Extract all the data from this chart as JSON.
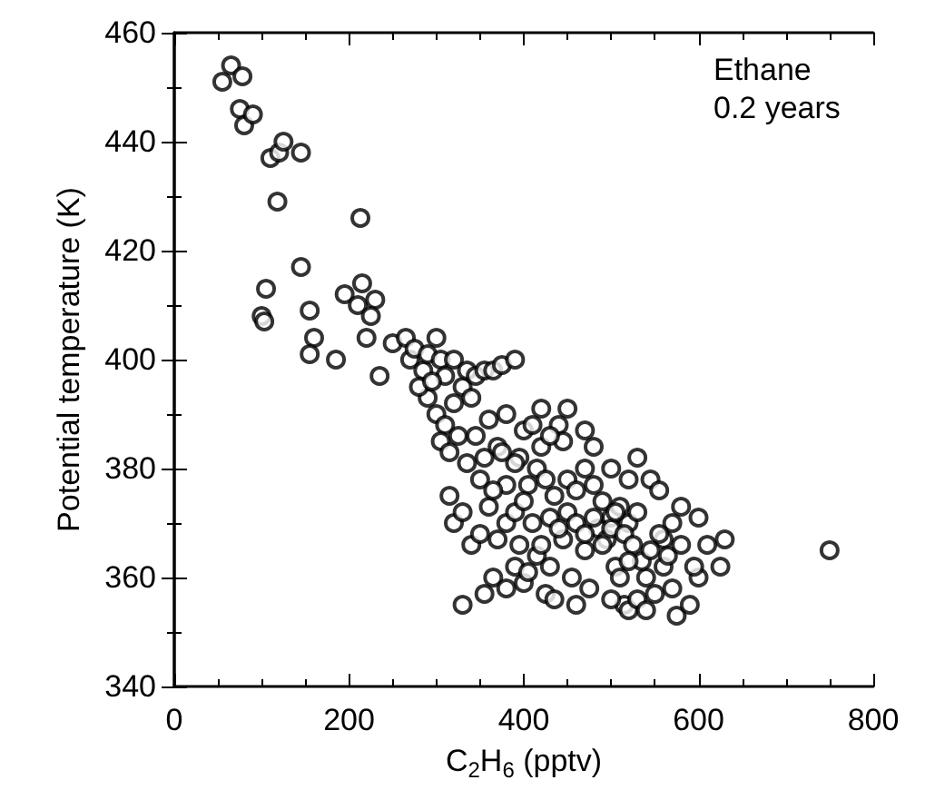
{
  "chart_data": {
    "type": "scatter",
    "xlabel": "C$_{2}$H$_{6}$ (pptv)",
    "ylabel": "Potential temperature (K)",
    "annotations": [
      "Ethane\n0.2 years"
    ],
    "xlim": [
      0,
      800
    ],
    "xticks": [
      0,
      200,
      400,
      600,
      800
    ],
    "ylim": [
      340,
      460
    ],
    "yticks": [
      340,
      360,
      380,
      400,
      420,
      440,
      460
    ],
    "marker": "circle",
    "series": [
      {
        "color": "#000000",
        "x": [
          55,
          65,
          78,
          75,
          80,
          90,
          110,
          120,
          118,
          145,
          125,
          213,
          105,
          100,
          103,
          145,
          155,
          160,
          155,
          185,
          195,
          210,
          215,
          220,
          230,
          225,
          235,
          250,
          265,
          270,
          275,
          285,
          290,
          300,
          305,
          310,
          320,
          290,
          300,
          310,
          320,
          330,
          335,
          340,
          345,
          355,
          365,
          375,
          390,
          305,
          315,
          325,
          335,
          345,
          355,
          360,
          370,
          380,
          400,
          420,
          440,
          445,
          410,
          395,
          405,
          415,
          425,
          435,
          450,
          460,
          470,
          480,
          490,
          500,
          510,
          520,
          530,
          545,
          555,
          560,
          570,
          580,
          600,
          610,
          630,
          625,
          750,
          330,
          355,
          365,
          380,
          390,
          400,
          415,
          425,
          430,
          445,
          455,
          470,
          485,
          495,
          505,
          515,
          520,
          530,
          540,
          550,
          560,
          570,
          575,
          590,
          600,
          315,
          320,
          330,
          340,
          350,
          360,
          370,
          380,
          390,
          400,
          410,
          420,
          430,
          440,
          450,
          460,
          470,
          480,
          490,
          500,
          505,
          515,
          525,
          535,
          545,
          555,
          565,
          580,
          595,
          380,
          390,
          395,
          405,
          435,
          460,
          475,
          500,
          510,
          520,
          540,
          350,
          365,
          375,
          420,
          430,
          450,
          470,
          480,
          500,
          520,
          530,
          280,
          295
        ],
        "values": [
          451,
          454,
          452,
          446,
          443,
          445,
          437,
          438,
          429,
          438,
          440,
          426,
          413,
          408,
          407,
          417,
          409,
          404,
          401,
          400,
          412,
          410,
          414,
          404,
          411,
          408,
          397,
          403,
          404,
          400,
          402,
          398,
          401,
          404,
          400,
          397,
          400,
          393,
          390,
          388,
          392,
          395,
          398,
          393,
          397,
          398,
          398,
          399,
          400,
          385,
          383,
          386,
          381,
          386,
          382,
          389,
          384,
          390,
          387,
          384,
          388,
          385,
          388,
          382,
          377,
          380,
          378,
          375,
          378,
          376,
          380,
          377,
          374,
          371,
          373,
          370,
          372,
          378,
          376,
          367,
          370,
          373,
          371,
          366,
          367,
          362,
          365,
          355,
          357,
          360,
          358,
          362,
          359,
          364,
          357,
          362,
          367,
          360,
          365,
          369,
          367,
          362,
          355,
          354,
          356,
          360,
          357,
          362,
          358,
          353,
          355,
          360,
          375,
          370,
          372,
          366,
          368,
          373,
          367,
          370,
          372,
          374,
          370,
          366,
          371,
          369,
          372,
          370,
          368,
          371,
          366,
          369,
          372,
          368,
          366,
          363,
          365,
          368,
          364,
          366,
          362,
          377,
          381,
          366,
          361,
          356,
          355,
          358,
          356,
          360,
          363,
          354,
          378,
          376,
          383,
          391,
          386,
          391,
          387,
          384,
          380,
          378,
          382,
          395,
          396
        ]
      }
    ]
  }
}
